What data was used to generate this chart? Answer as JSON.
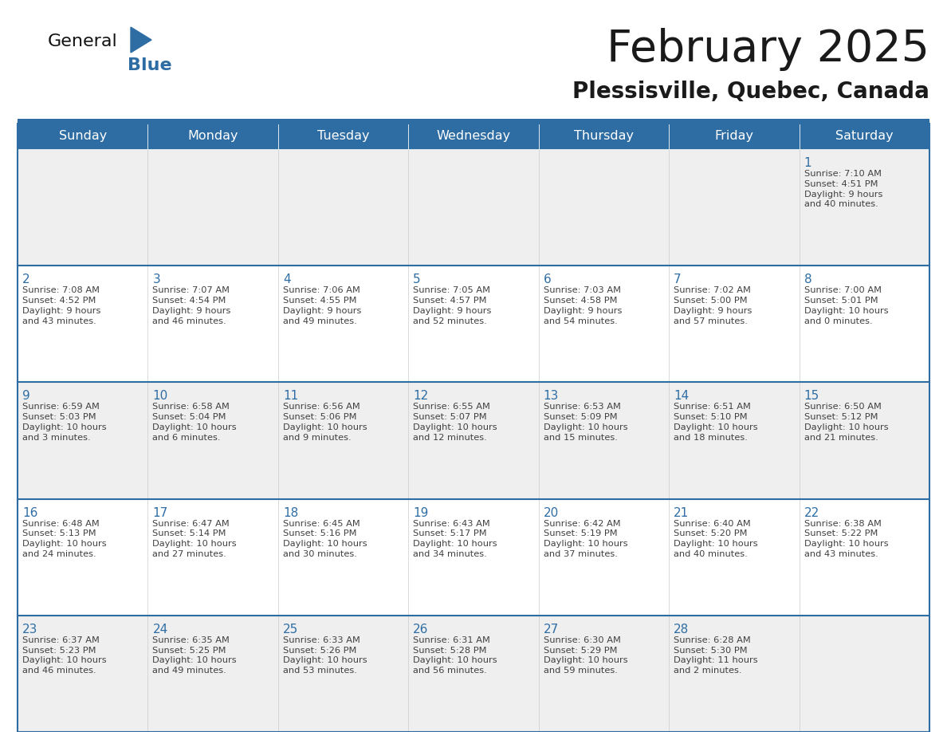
{
  "title": "February 2025",
  "subtitle": "Plessisville, Quebec, Canada",
  "header_color": "#2E6DA4",
  "header_text_color": "#FFFFFF",
  "cell_bg_color": "#FFFFFF",
  "row1_bg_color": "#F0F0F0",
  "border_color": "#2E6DA4",
  "text_color": "#404040",
  "day_num_color": "#2E6DA4",
  "days_of_week": [
    "Sunday",
    "Monday",
    "Tuesday",
    "Wednesday",
    "Thursday",
    "Friday",
    "Saturday"
  ],
  "logo_general_color": "#111111",
  "logo_blue_color": "#2E6DA4",
  "calendar_data": [
    [
      null,
      null,
      null,
      null,
      null,
      null,
      {
        "day": "1",
        "sunrise": "7:10 AM",
        "sunset": "4:51 PM",
        "daylight": "9 hours\nand 40 minutes."
      }
    ],
    [
      {
        "day": "2",
        "sunrise": "7:08 AM",
        "sunset": "4:52 PM",
        "daylight": "9 hours\nand 43 minutes."
      },
      {
        "day": "3",
        "sunrise": "7:07 AM",
        "sunset": "4:54 PM",
        "daylight": "9 hours\nand 46 minutes."
      },
      {
        "day": "4",
        "sunrise": "7:06 AM",
        "sunset": "4:55 PM",
        "daylight": "9 hours\nand 49 minutes."
      },
      {
        "day": "5",
        "sunrise": "7:05 AM",
        "sunset": "4:57 PM",
        "daylight": "9 hours\nand 52 minutes."
      },
      {
        "day": "6",
        "sunrise": "7:03 AM",
        "sunset": "4:58 PM",
        "daylight": "9 hours\nand 54 minutes."
      },
      {
        "day": "7",
        "sunrise": "7:02 AM",
        "sunset": "5:00 PM",
        "daylight": "9 hours\nand 57 minutes."
      },
      {
        "day": "8",
        "sunrise": "7:00 AM",
        "sunset": "5:01 PM",
        "daylight": "10 hours\nand 0 minutes."
      }
    ],
    [
      {
        "day": "9",
        "sunrise": "6:59 AM",
        "sunset": "5:03 PM",
        "daylight": "10 hours\nand 3 minutes."
      },
      {
        "day": "10",
        "sunrise": "6:58 AM",
        "sunset": "5:04 PM",
        "daylight": "10 hours\nand 6 minutes."
      },
      {
        "day": "11",
        "sunrise": "6:56 AM",
        "sunset": "5:06 PM",
        "daylight": "10 hours\nand 9 minutes."
      },
      {
        "day": "12",
        "sunrise": "6:55 AM",
        "sunset": "5:07 PM",
        "daylight": "10 hours\nand 12 minutes."
      },
      {
        "day": "13",
        "sunrise": "6:53 AM",
        "sunset": "5:09 PM",
        "daylight": "10 hours\nand 15 minutes."
      },
      {
        "day": "14",
        "sunrise": "6:51 AM",
        "sunset": "5:10 PM",
        "daylight": "10 hours\nand 18 minutes."
      },
      {
        "day": "15",
        "sunrise": "6:50 AM",
        "sunset": "5:12 PM",
        "daylight": "10 hours\nand 21 minutes."
      }
    ],
    [
      {
        "day": "16",
        "sunrise": "6:48 AM",
        "sunset": "5:13 PM",
        "daylight": "10 hours\nand 24 minutes."
      },
      {
        "day": "17",
        "sunrise": "6:47 AM",
        "sunset": "5:14 PM",
        "daylight": "10 hours\nand 27 minutes."
      },
      {
        "day": "18",
        "sunrise": "6:45 AM",
        "sunset": "5:16 PM",
        "daylight": "10 hours\nand 30 minutes."
      },
      {
        "day": "19",
        "sunrise": "6:43 AM",
        "sunset": "5:17 PM",
        "daylight": "10 hours\nand 34 minutes."
      },
      {
        "day": "20",
        "sunrise": "6:42 AM",
        "sunset": "5:19 PM",
        "daylight": "10 hours\nand 37 minutes."
      },
      {
        "day": "21",
        "sunrise": "6:40 AM",
        "sunset": "5:20 PM",
        "daylight": "10 hours\nand 40 minutes."
      },
      {
        "day": "22",
        "sunrise": "6:38 AM",
        "sunset": "5:22 PM",
        "daylight": "10 hours\nand 43 minutes."
      }
    ],
    [
      {
        "day": "23",
        "sunrise": "6:37 AM",
        "sunset": "5:23 PM",
        "daylight": "10 hours\nand 46 minutes."
      },
      {
        "day": "24",
        "sunrise": "6:35 AM",
        "sunset": "5:25 PM",
        "daylight": "10 hours\nand 49 minutes."
      },
      {
        "day": "25",
        "sunrise": "6:33 AM",
        "sunset": "5:26 PM",
        "daylight": "10 hours\nand 53 minutes."
      },
      {
        "day": "26",
        "sunrise": "6:31 AM",
        "sunset": "5:28 PM",
        "daylight": "10 hours\nand 56 minutes."
      },
      {
        "day": "27",
        "sunrise": "6:30 AM",
        "sunset": "5:29 PM",
        "daylight": "10 hours\nand 59 minutes."
      },
      {
        "day": "28",
        "sunrise": "6:28 AM",
        "sunset": "5:30 PM",
        "daylight": "11 hours\nand 2 minutes."
      },
      null
    ]
  ]
}
